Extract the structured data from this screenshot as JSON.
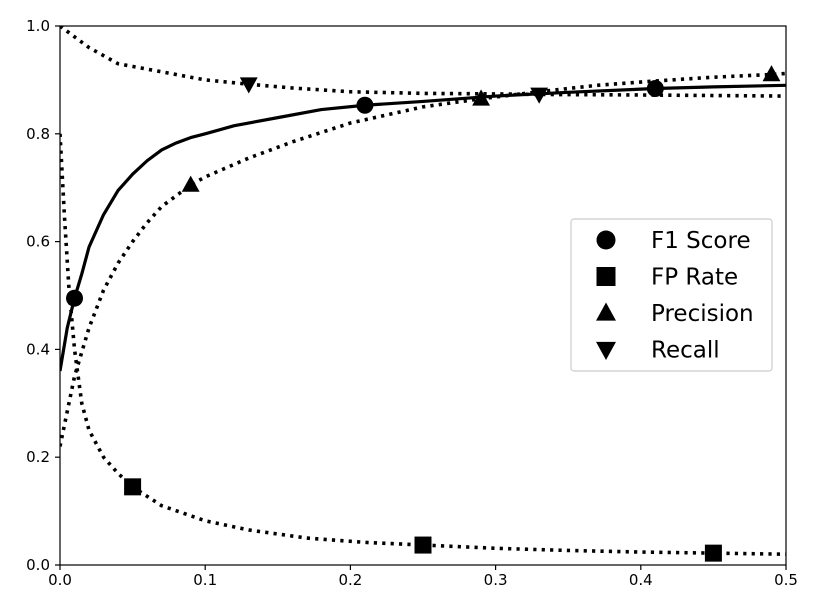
{
  "chart_data": {
    "type": "line",
    "title": "",
    "xlabel": "",
    "ylabel": "",
    "xlim": [
      0,
      0.5
    ],
    "ylim": [
      0,
      1.0
    ],
    "grid": false,
    "legend_position": "center-right",
    "x_ticks": [
      "0.0",
      "0.1",
      "0.2",
      "0.3",
      "0.4",
      "0.5"
    ],
    "y_ticks": [
      "0.0",
      "0.2",
      "0.4",
      "0.6",
      "0.8",
      "1.0"
    ],
    "series": [
      {
        "name": "F1 Score",
        "line_style": "solid",
        "marker": "circle",
        "color": "#000000",
        "x": [
          0.0,
          0.005,
          0.01,
          0.015,
          0.02,
          0.03,
          0.04,
          0.05,
          0.06,
          0.07,
          0.08,
          0.09,
          0.1,
          0.12,
          0.15,
          0.18,
          0.21,
          0.25,
          0.3,
          0.35,
          0.41,
          0.45,
          0.5
        ],
        "y": [
          0.36,
          0.44,
          0.495,
          0.54,
          0.59,
          0.65,
          0.695,
          0.725,
          0.75,
          0.77,
          0.783,
          0.793,
          0.8,
          0.815,
          0.83,
          0.845,
          0.853,
          0.86,
          0.87,
          0.877,
          0.884,
          0.887,
          0.89
        ],
        "markers_x": [
          0.01,
          0.21,
          0.41
        ],
        "markers_y": [
          0.495,
          0.853,
          0.884
        ]
      },
      {
        "name": "FP Rate",
        "line_style": "dotted",
        "marker": "square",
        "color": "#000000",
        "x": [
          0.0,
          0.003,
          0.006,
          0.01,
          0.015,
          0.02,
          0.03,
          0.04,
          0.05,
          0.07,
          0.1,
          0.13,
          0.17,
          0.21,
          0.25,
          0.3,
          0.35,
          0.4,
          0.45,
          0.5
        ],
        "y": [
          0.8,
          0.65,
          0.52,
          0.4,
          0.3,
          0.25,
          0.2,
          0.17,
          0.145,
          0.11,
          0.082,
          0.065,
          0.05,
          0.042,
          0.037,
          0.031,
          0.027,
          0.024,
          0.022,
          0.02
        ],
        "markers_x": [
          0.05,
          0.25,
          0.45
        ],
        "markers_y": [
          0.145,
          0.037,
          0.022
        ]
      },
      {
        "name": "Precision",
        "line_style": "dotted",
        "marker": "triangle-up",
        "color": "#000000",
        "x": [
          0.0,
          0.01,
          0.02,
          0.03,
          0.04,
          0.05,
          0.06,
          0.07,
          0.08,
          0.09,
          0.1,
          0.13,
          0.16,
          0.2,
          0.25,
          0.29,
          0.33,
          0.37,
          0.41,
          0.45,
          0.49,
          0.5
        ],
        "y": [
          0.22,
          0.35,
          0.44,
          0.51,
          0.56,
          0.6,
          0.635,
          0.665,
          0.685,
          0.705,
          0.72,
          0.755,
          0.785,
          0.82,
          0.85,
          0.865,
          0.878,
          0.89,
          0.898,
          0.905,
          0.91,
          0.912
        ],
        "markers_x": [
          0.09,
          0.29,
          0.49
        ],
        "markers_y": [
          0.705,
          0.865,
          0.91
        ]
      },
      {
        "name": "Recall",
        "line_style": "dotted",
        "marker": "triangle-down",
        "color": "#000000",
        "x": [
          0.0,
          0.01,
          0.02,
          0.03,
          0.04,
          0.06,
          0.08,
          0.1,
          0.13,
          0.16,
          0.2,
          0.25,
          0.3,
          0.33,
          0.4,
          0.45,
          0.5
        ],
        "y": [
          1.0,
          0.98,
          0.96,
          0.945,
          0.93,
          0.92,
          0.91,
          0.9,
          0.892,
          0.885,
          0.878,
          0.875,
          0.874,
          0.873,
          0.872,
          0.871,
          0.87
        ],
        "markers_x": [
          0.13,
          0.33
        ],
        "markers_y": [
          0.892,
          0.873
        ]
      }
    ]
  }
}
